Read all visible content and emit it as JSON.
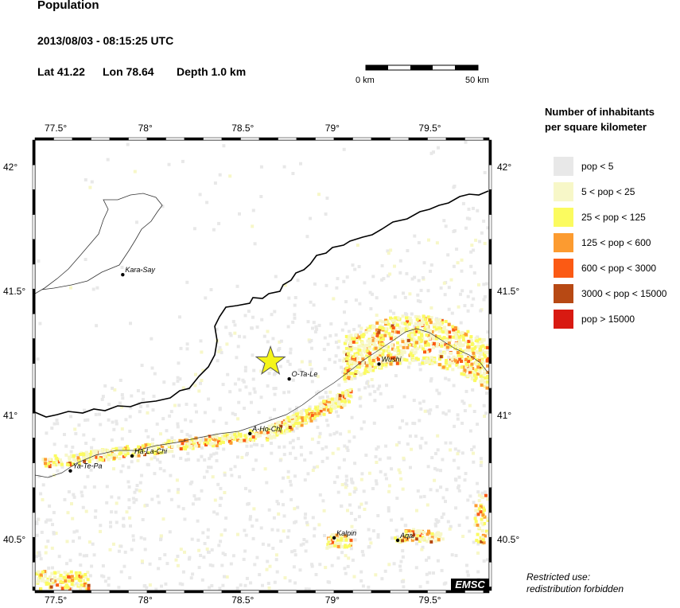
{
  "header": {
    "title": "Population",
    "datetime": "2013/08/03 - 08:15:25 UTC",
    "lat": "Lat 41.22",
    "lon": "Lon  78.64",
    "depth": "Depth  1.0 km"
  },
  "scale_bar": {
    "start_label": "0 km",
    "end_label": "50 km"
  },
  "legend": {
    "title_line1": "Number of inhabitants",
    "title_line2": "per square kilometer",
    "items": [
      {
        "label": "pop < 5",
        "color": "#e8e8e8"
      },
      {
        "label": "5 < pop < 25",
        "color": "#f7f7c8"
      },
      {
        "label": "25 < pop < 125",
        "color": "#fbfb5f"
      },
      {
        "label": "125 < pop < 600",
        "color": "#fc9b30"
      },
      {
        "label": "600 < pop < 3000",
        "color": "#fb5a14"
      },
      {
        "label": "3000 < pop < 15000",
        "color": "#b74914"
      },
      {
        "label": "pop > 15000",
        "color": "#d81a12"
      }
    ]
  },
  "axes": {
    "lon_ticks": [
      "77.5°",
      "78°",
      "78.5°",
      "79°",
      "79.5°"
    ],
    "lat_ticks": [
      "42°",
      "41.5°",
      "41°",
      "40.5°"
    ]
  },
  "cities": [
    {
      "name": "Kara-Say",
      "lon": 77.85,
      "lat": 41.57
    },
    {
      "name": "O-Ta-Le",
      "lon": 78.74,
      "lat": 41.15
    },
    {
      "name": "Wushi",
      "lon": 79.22,
      "lat": 41.21
    },
    {
      "name": "A-Ho-Chi",
      "lon": 78.53,
      "lat": 40.93
    },
    {
      "name": "Ha-La-Chi",
      "lon": 77.9,
      "lat": 40.84
    },
    {
      "name": "Ya-Te-Pa",
      "lon": 77.57,
      "lat": 40.78
    },
    {
      "name": "Kalpin",
      "lon": 78.98,
      "lat": 40.51
    },
    {
      "name": "Aqal",
      "lon": 79.32,
      "lat": 40.5
    }
  ],
  "epicenter": {
    "lon": 78.64,
    "lat": 41.22,
    "color": "#f5f51a"
  },
  "watermark": "EMSC",
  "restricted_line1": "Restricted use:",
  "restricted_line2": "redistribution forbidden"
}
